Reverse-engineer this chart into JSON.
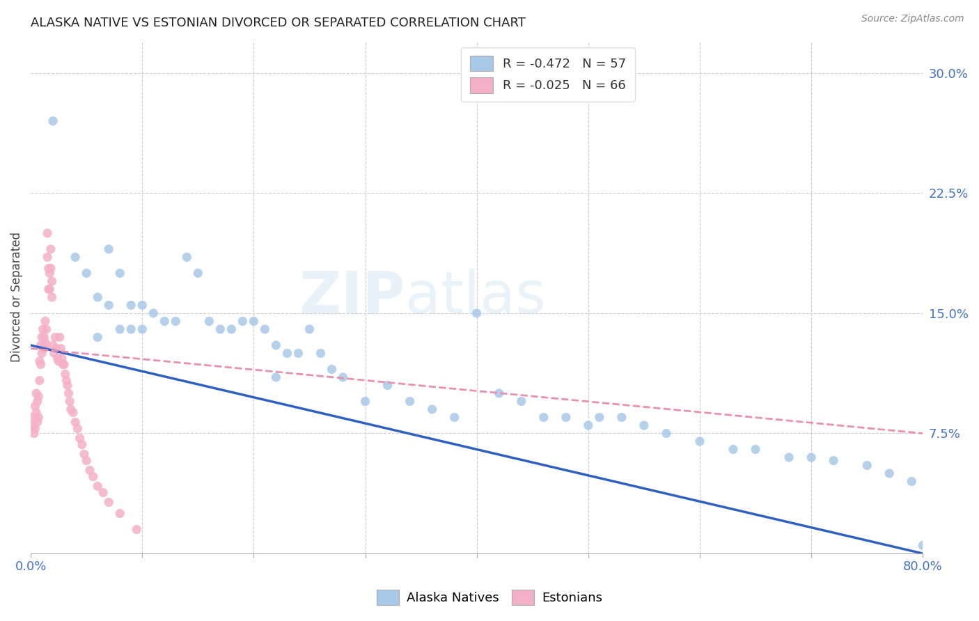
{
  "title": "ALASKA NATIVE VS ESTONIAN DIVORCED OR SEPARATED CORRELATION CHART",
  "source": "Source: ZipAtlas.com",
  "ylabel": "Divorced or Separated",
  "alaska_color": "#a8c8e8",
  "estonian_color": "#f4b0c8",
  "alaska_line_color": "#3060c0",
  "estonian_line_color": "#e890b0",
  "watermark_zip": "ZIP",
  "watermark_atlas": "atlas",
  "legend_alaska": "R = -0.472   N = 57",
  "legend_estonian": "R = -0.025   N = 66",
  "legend_bottom_alaska": "Alaska Natives",
  "legend_bottom_estonian": "Estonians",
  "xmin": 0.0,
  "xmax": 0.8,
  "ymin": 0.0,
  "ymax": 0.32,
  "alaska_x": [
    0.02,
    0.04,
    0.05,
    0.06,
    0.06,
    0.07,
    0.07,
    0.08,
    0.08,
    0.09,
    0.09,
    0.1,
    0.1,
    0.11,
    0.12,
    0.13,
    0.14,
    0.15,
    0.16,
    0.17,
    0.18,
    0.19,
    0.2,
    0.21,
    0.22,
    0.22,
    0.23,
    0.24,
    0.25,
    0.26,
    0.27,
    0.28,
    0.3,
    0.32,
    0.34,
    0.36,
    0.38,
    0.4,
    0.42,
    0.44,
    0.46,
    0.48,
    0.5,
    0.51,
    0.53,
    0.55,
    0.57,
    0.6,
    0.63,
    0.65,
    0.68,
    0.7,
    0.72,
    0.75,
    0.77,
    0.79,
    0.8
  ],
  "alaska_y": [
    0.27,
    0.185,
    0.175,
    0.16,
    0.135,
    0.19,
    0.155,
    0.175,
    0.14,
    0.155,
    0.14,
    0.155,
    0.14,
    0.15,
    0.145,
    0.145,
    0.185,
    0.175,
    0.145,
    0.14,
    0.14,
    0.145,
    0.145,
    0.14,
    0.13,
    0.11,
    0.125,
    0.125,
    0.14,
    0.125,
    0.115,
    0.11,
    0.095,
    0.105,
    0.095,
    0.09,
    0.085,
    0.15,
    0.1,
    0.095,
    0.085,
    0.085,
    0.08,
    0.085,
    0.085,
    0.08,
    0.075,
    0.07,
    0.065,
    0.065,
    0.06,
    0.06,
    0.058,
    0.055,
    0.05,
    0.045,
    0.005
  ],
  "estonian_x": [
    0.001,
    0.002,
    0.003,
    0.004,
    0.004,
    0.005,
    0.005,
    0.006,
    0.006,
    0.007,
    0.007,
    0.008,
    0.008,
    0.009,
    0.009,
    0.01,
    0.01,
    0.011,
    0.011,
    0.012,
    0.012,
    0.013,
    0.013,
    0.014,
    0.014,
    0.015,
    0.015,
    0.016,
    0.016,
    0.017,
    0.017,
    0.018,
    0.018,
    0.019,
    0.019,
    0.02,
    0.021,
    0.022,
    0.023,
    0.024,
    0.025,
    0.026,
    0.027,
    0.028,
    0.029,
    0.03,
    0.031,
    0.032,
    0.033,
    0.034,
    0.035,
    0.036,
    0.038,
    0.04,
    0.042,
    0.044,
    0.046,
    0.048,
    0.05,
    0.053,
    0.056,
    0.06,
    0.065,
    0.07,
    0.08,
    0.095
  ],
  "estonian_y": [
    0.085,
    0.08,
    0.075,
    0.092,
    0.078,
    0.1,
    0.088,
    0.095,
    0.082,
    0.098,
    0.085,
    0.12,
    0.108,
    0.13,
    0.118,
    0.135,
    0.125,
    0.14,
    0.128,
    0.135,
    0.128,
    0.145,
    0.132,
    0.14,
    0.13,
    0.2,
    0.185,
    0.178,
    0.165,
    0.175,
    0.165,
    0.19,
    0.178,
    0.17,
    0.16,
    0.13,
    0.125,
    0.135,
    0.128,
    0.122,
    0.12,
    0.135,
    0.128,
    0.122,
    0.118,
    0.118,
    0.112,
    0.108,
    0.105,
    0.1,
    0.095,
    0.09,
    0.088,
    0.082,
    0.078,
    0.072,
    0.068,
    0.062,
    0.058,
    0.052,
    0.048,
    0.042,
    0.038,
    0.032,
    0.025,
    0.015
  ],
  "alaska_trend_x0": 0.0,
  "alaska_trend_y0": 0.13,
  "alaska_trend_x1": 0.8,
  "alaska_trend_y1": 0.0,
  "estonian_trend_x0": 0.0,
  "estonian_trend_y0": 0.128,
  "estonian_trend_x1": 0.8,
  "estonian_trend_y1": 0.075
}
